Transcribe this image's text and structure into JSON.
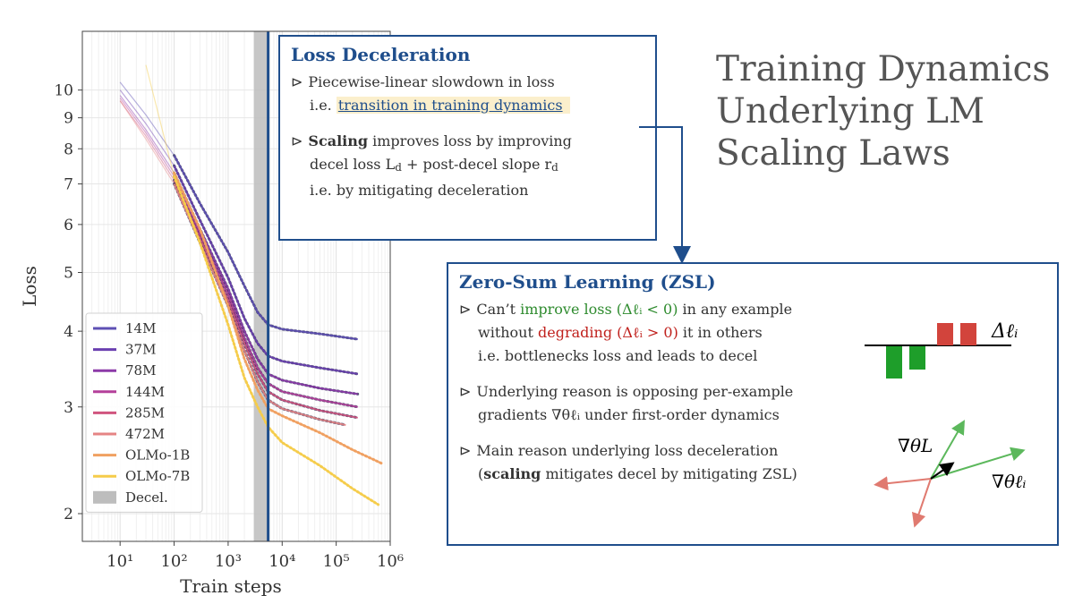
{
  "title": {
    "lines": [
      "Training Dynamics",
      "Underlying LM",
      "Scaling Laws"
    ]
  },
  "loss_box": {
    "title": "Loss Deceleration",
    "b1_line1": "Piecewise-linear slowdown in loss",
    "b1_line2_prefix": "i.e.",
    "b1_line2_link": "transition in training dynamics",
    "b2_bold": "Scaling",
    "b2_rest": "improves loss by improving",
    "b2_line2_a": "decel loss L",
    "b2_line2_sub1": "d",
    "b2_line2_b": " + post-decel slope r",
    "b2_line2_sub2": "d",
    "b2_line3": "i.e. by mitigating deceleration"
  },
  "zsl_box": {
    "title": "Zero-Sum Learning (ZSL)",
    "p1_a": "Can’t",
    "p1_green": "improve loss (Δℓᵢ < 0)",
    "p1_b": "in any example",
    "p1_l2_a": "without",
    "p1_l2_red": "degrading (Δℓᵢ > 0)",
    "p1_l2_b": "it in others",
    "p1_l3": "i.e. bottlenecks loss and leads to decel",
    "p2_l1": "Underlying reason is opposing per-example",
    "p2_l2": "gradients ∇θℓᵢ under first-order dynamics",
    "p3_l1": "Main reason underlying loss deceleration",
    "p3_l2_open": "(",
    "p3_l2_bold": "scaling",
    "p3_l2_rest": "mitigates decel by mitigating ZSL)",
    "delta_label": "Δℓᵢ",
    "grad_L_label": "∇θL",
    "grad_li_label": "∇θℓᵢ"
  },
  "colors": {
    "accent": "#1f4e8c",
    "highlight": "#fbefcc",
    "improve_green": "#2e8b2e",
    "degrade_red": "#c0201c",
    "bar_green": "#1e9e2a",
    "bar_red": "#d2443c",
    "decel_band": "#bdbdbd"
  },
  "chart_data": {
    "type": "line",
    "x_scale": "log",
    "y_scale": "log",
    "xlabel": "Train steps",
    "ylabel": "Loss",
    "xlim": [
      2,
      1000000
    ],
    "ylim": [
      1.8,
      12.5
    ],
    "x_tick_labels": [
      "10¹",
      "10²",
      "10³",
      "10⁴",
      "10⁵",
      "10⁶"
    ],
    "x_tick_values": [
      10,
      100,
      1000,
      10000,
      100000,
      1000000
    ],
    "y_ticks": [
      2,
      3,
      4,
      5,
      6,
      7,
      8,
      9,
      10
    ],
    "grid": true,
    "legend_position": "lower-left",
    "decel_region": [
      3000,
      5500
    ],
    "decel_line_x": 5500,
    "series": [
      {
        "name": "14M",
        "color": "#5e50b4",
        "x": [
          10,
          30,
          100,
          300,
          1000,
          2000,
          3500,
          5500,
          10000,
          50000,
          250000
        ],
        "y": [
          10.3,
          9.1,
          7.8,
          6.5,
          5.4,
          4.75,
          4.3,
          4.1,
          4.03,
          3.96,
          3.88
        ]
      },
      {
        "name": "37M",
        "color": "#6a3fb0",
        "x": [
          10,
          30,
          100,
          300,
          1000,
          2000,
          3500,
          5500,
          10000,
          50000,
          250000
        ],
        "y": [
          10.0,
          8.8,
          7.5,
          6.1,
          4.9,
          4.2,
          3.82,
          3.64,
          3.57,
          3.48,
          3.4
        ]
      },
      {
        "name": "78M",
        "color": "#8c3aa8",
        "x": [
          10,
          30,
          100,
          300,
          1000,
          2000,
          3500,
          5500,
          10000,
          50000,
          250000
        ],
        "y": [
          9.8,
          8.6,
          7.3,
          5.9,
          4.7,
          4.0,
          3.6,
          3.4,
          3.32,
          3.22,
          3.15
        ]
      },
      {
        "name": "144M",
        "color": "#b4409a",
        "x": [
          10,
          30,
          100,
          300,
          1000,
          2000,
          3500,
          5500,
          10000,
          50000,
          250000
        ],
        "y": [
          9.7,
          8.5,
          7.2,
          5.8,
          4.6,
          3.9,
          3.48,
          3.28,
          3.18,
          3.08,
          3.0
        ]
      },
      {
        "name": "285M",
        "color": "#d0547e",
        "x": [
          10,
          30,
          100,
          300,
          1000,
          2000,
          3500,
          5500,
          10000,
          50000,
          250000
        ],
        "y": [
          9.6,
          8.4,
          7.1,
          5.7,
          4.5,
          3.82,
          3.4,
          3.18,
          3.08,
          2.96,
          2.88
        ]
      },
      {
        "name": "472M",
        "color": "#e58484",
        "x": [
          10,
          30,
          100,
          300,
          1000,
          2000,
          3500,
          5500,
          10000,
          50000,
          150000
        ],
        "y": [
          9.6,
          8.3,
          7.0,
          5.6,
          4.4,
          3.72,
          3.3,
          3.08,
          2.98,
          2.86,
          2.8
        ]
      },
      {
        "name": "OLMo-1B",
        "color": "#f0a060",
        "x": [
          100,
          300,
          1000,
          2000,
          3500,
          5500,
          10000,
          50000,
          200000,
          700000
        ],
        "y": [
          7.3,
          5.9,
          4.4,
          3.6,
          3.2,
          2.98,
          2.9,
          2.72,
          2.55,
          2.42
        ]
      },
      {
        "name": "OLMo-7B",
        "color": "#f5cc4a",
        "x": [
          30,
          100,
          300,
          1000,
          2000,
          3500,
          5500,
          10000,
          50000,
          200000,
          600000
        ],
        "y": [
          11.0,
          7.2,
          5.6,
          4.1,
          3.35,
          3.0,
          2.78,
          2.62,
          2.4,
          2.2,
          2.07
        ]
      }
    ],
    "legend": [
      "14M",
      "37M",
      "78M",
      "144M",
      "285M",
      "472M",
      "OLMo-1B",
      "OLMo-7B",
      "Decel."
    ]
  }
}
